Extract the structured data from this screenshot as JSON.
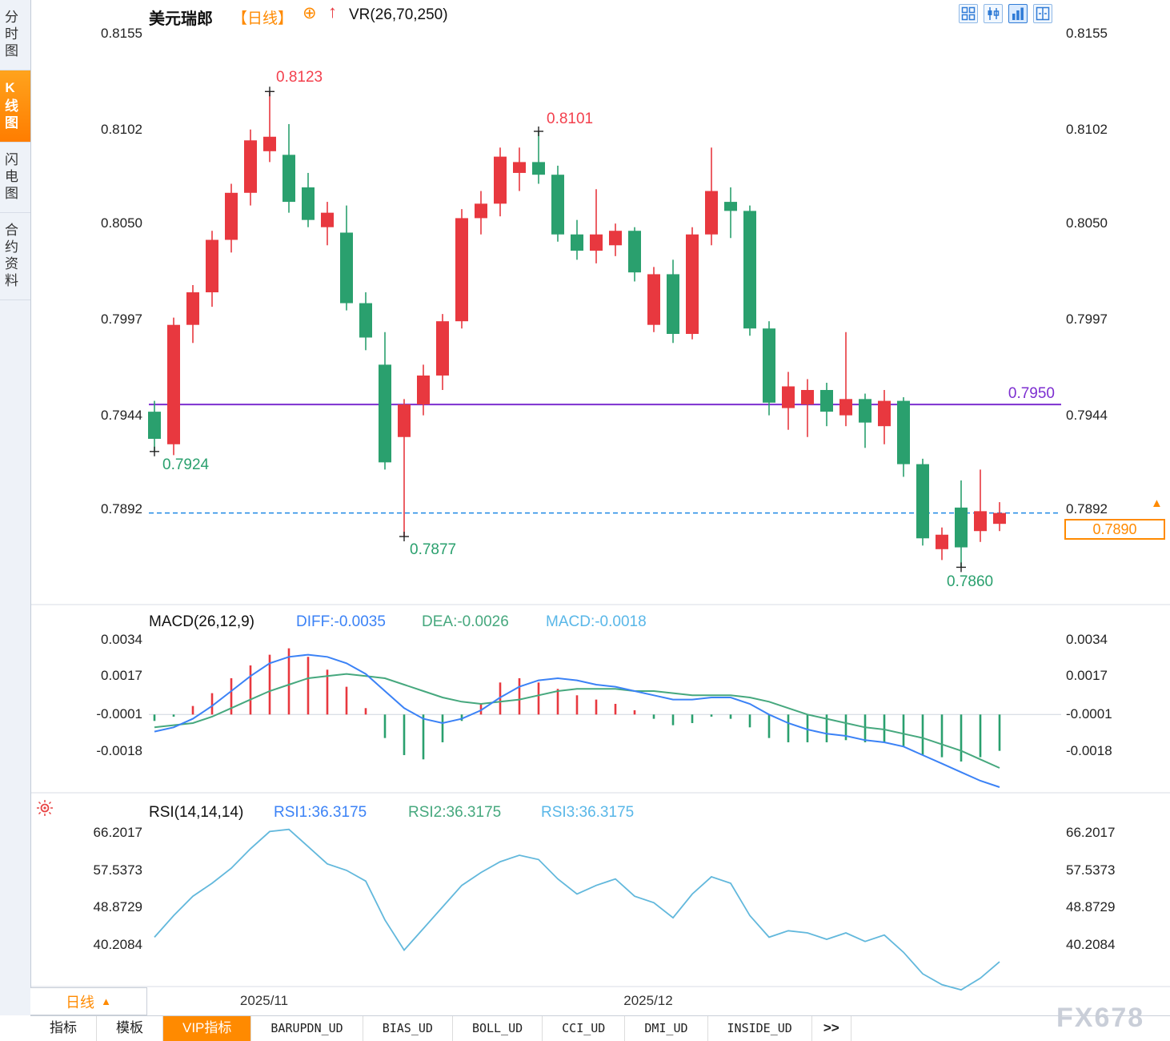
{
  "header": {
    "symbol": "美元瑞郎",
    "period_tag": "【日线】",
    "overlay_icon": "⊕",
    "trend_icon": "↑",
    "indicator_label": "VR(26,70,250)"
  },
  "sidebar": {
    "items": [
      {
        "label": "分时图",
        "active": false
      },
      {
        "label": "K线图",
        "active": true
      },
      {
        "label": "闪电图",
        "active": false
      },
      {
        "label": "合约资料",
        "active": false
      }
    ]
  },
  "toolbar": {
    "icons": [
      "grid-layout",
      "candles-layout",
      "bars-layout",
      "panes-layout"
    ]
  },
  "colors": {
    "up": "#e8383f",
    "down": "#2aa06e",
    "diff": "#3b82f6",
    "dea": "#46a87e",
    "rsi": "#62b8dc",
    "accent_orange": "#ff8a00",
    "purple_line": "#7d2fd0",
    "dashed_blue": "#1e88e5"
  },
  "bottom_left": {
    "period": "日线",
    "arrow": "▲"
  },
  "bottom_tabs": {
    "items": [
      {
        "label": "指标"
      },
      {
        "label": "模板"
      },
      {
        "label": "VIP指标",
        "active": true
      },
      {
        "label": "BARUPDN_UD"
      },
      {
        "label": "BIAS_UD"
      },
      {
        "label": "BOLL_UD"
      },
      {
        "label": "CCI_UD"
      },
      {
        "label": "DMI_UD"
      },
      {
        "label": "INSIDE_UD"
      },
      {
        "label": ">>"
      }
    ]
  },
  "watermark": "FX678",
  "chart_data": [
    {
      "type": "candlestick",
      "symbol": "美元瑞郎",
      "timeframe": "日线",
      "x_labels": [
        "2025/11",
        "2025/12"
      ],
      "ylim": [
        0.784,
        0.816
      ],
      "yticks": [
        "0.8155",
        "0.8102",
        "0.8050",
        "0.7997",
        "0.7944",
        "0.7892"
      ],
      "last_price": "0.7890",
      "hlines": [
        {
          "value": 0.795,
          "label": "0.7950",
          "color": "#7d2fd0",
          "style": "solid"
        },
        {
          "value": 0.789,
          "label": "0.7890",
          "color": "#1e88e5",
          "style": "dashed"
        }
      ],
      "annotations": [
        {
          "index": 6,
          "text": "0.8123",
          "position": "high"
        },
        {
          "index": 20,
          "text": "0.8101",
          "position": "high"
        },
        {
          "index": 0,
          "text": "0.7924",
          "position": "low"
        },
        {
          "index": 13,
          "text": "0.7877",
          "position": "low"
        },
        {
          "index": 42,
          "text": "0.7860",
          "position": "low"
        }
      ],
      "candles": [
        [
          0.7946,
          0.7952,
          0.7924,
          0.7931
        ],
        [
          0.7928,
          0.7998,
          0.7922,
          0.7994
        ],
        [
          0.7994,
          0.8016,
          0.7984,
          0.8012
        ],
        [
          0.8012,
          0.8046,
          0.8004,
          0.8041
        ],
        [
          0.8041,
          0.8072,
          0.8034,
          0.8067
        ],
        [
          0.8067,
          0.8102,
          0.806,
          0.8096
        ],
        [
          0.809,
          0.8123,
          0.8084,
          0.8098
        ],
        [
          0.8088,
          0.8105,
          0.8056,
          0.8062
        ],
        [
          0.807,
          0.8078,
          0.8048,
          0.8052
        ],
        [
          0.8048,
          0.8062,
          0.8038,
          0.8056
        ],
        [
          0.8045,
          0.806,
          0.8002,
          0.8006
        ],
        [
          0.8006,
          0.8012,
          0.798,
          0.7987
        ],
        [
          0.7972,
          0.799,
          0.7914,
          0.7918
        ],
        [
          0.7932,
          0.7953,
          0.7877,
          0.795
        ],
        [
          0.795,
          0.7972,
          0.7944,
          0.7966
        ],
        [
          0.7966,
          0.8,
          0.7958,
          0.7996
        ],
        [
          0.7996,
          0.8058,
          0.7992,
          0.8053
        ],
        [
          0.8053,
          0.8068,
          0.8044,
          0.8061
        ],
        [
          0.8061,
          0.8092,
          0.8054,
          0.8087
        ],
        [
          0.8078,
          0.8092,
          0.8068,
          0.8084
        ],
        [
          0.8084,
          0.8101,
          0.8072,
          0.8077
        ],
        [
          0.8077,
          0.8082,
          0.804,
          0.8044
        ],
        [
          0.8044,
          0.8052,
          0.803,
          0.8035
        ],
        [
          0.8035,
          0.8069,
          0.8028,
          0.8044
        ],
        [
          0.8038,
          0.805,
          0.8032,
          0.8046
        ],
        [
          0.8046,
          0.8048,
          0.8018,
          0.8023
        ],
        [
          0.7994,
          0.8026,
          0.799,
          0.8022
        ],
        [
          0.8022,
          0.803,
          0.7984,
          0.7989
        ],
        [
          0.7989,
          0.8048,
          0.7986,
          0.8044
        ],
        [
          0.8044,
          0.8092,
          0.8038,
          0.8068
        ],
        [
          0.8062,
          0.807,
          0.8042,
          0.8057
        ],
        [
          0.8057,
          0.806,
          0.7988,
          0.7992
        ],
        [
          0.7992,
          0.7996,
          0.7944,
          0.7951
        ],
        [
          0.7948,
          0.7968,
          0.7936,
          0.796
        ],
        [
          0.795,
          0.7964,
          0.7932,
          0.7958
        ],
        [
          0.7958,
          0.7962,
          0.7938,
          0.7946
        ],
        [
          0.7944,
          0.799,
          0.7938,
          0.7953
        ],
        [
          0.7953,
          0.7956,
          0.7926,
          0.794
        ],
        [
          0.7938,
          0.7958,
          0.7928,
          0.7952
        ],
        [
          0.7952,
          0.7954,
          0.791,
          0.7917
        ],
        [
          0.7917,
          0.792,
          0.7872,
          0.7876
        ],
        [
          0.787,
          0.7882,
          0.7864,
          0.7878
        ],
        [
          0.7893,
          0.7908,
          0.786,
          0.7871
        ],
        [
          0.788,
          0.7914,
          0.7874,
          0.7891
        ],
        [
          0.7884,
          0.7896,
          0.788,
          0.789
        ]
      ]
    },
    {
      "type": "bar",
      "name": "MACD",
      "title": "MACD(26,12,9)",
      "labels": {
        "diff": "DIFF:-0.0035",
        "dea": "DEA:-0.0026",
        "macd": "MACD:-0.0018"
      },
      "yticks": [
        "0.0034",
        "0.0017",
        "-0.0001",
        "-0.0018"
      ],
      "histogram": [
        -0.0004,
        -0.0002,
        0.0003,
        0.0009,
        0.0016,
        0.0022,
        0.0027,
        0.003,
        0.0026,
        0.002,
        0.0012,
        0.0002,
        -0.0012,
        -0.002,
        -0.0022,
        -0.0014,
        -0.0004,
        0.0004,
        0.0014,
        0.0016,
        0.0014,
        0.0011,
        0.0008,
        0.0006,
        0.0004,
        0.0001,
        -0.0003,
        -0.0006,
        -0.0005,
        -0.0002,
        -0.0003,
        -0.0007,
        -0.0012,
        -0.0014,
        -0.0014,
        -0.0014,
        -0.0013,
        -0.0014,
        -0.0014,
        -0.0016,
        -0.002,
        -0.0021,
        -0.0023,
        -0.0021,
        -0.0018
      ],
      "diff": [
        -0.0009,
        -0.0007,
        -0.0003,
        0.0003,
        0.001,
        0.0017,
        0.0023,
        0.0026,
        0.0027,
        0.0026,
        0.0023,
        0.0018,
        0.001,
        0.0002,
        -0.0003,
        -0.0005,
        -0.0003,
        0.0001,
        0.0007,
        0.0012,
        0.0015,
        0.0016,
        0.0015,
        0.0013,
        0.0012,
        0.001,
        0.0008,
        0.0006,
        0.0006,
        0.0007,
        0.0007,
        0.0004,
        -0.0001,
        -0.0005,
        -0.0008,
        -0.001,
        -0.0011,
        -0.0013,
        -0.0014,
        -0.0016,
        -0.002,
        -0.0024,
        -0.0028,
        -0.0032,
        -0.0035
      ],
      "dea": [
        -0.0007,
        -0.0006,
        -0.0005,
        -0.0002,
        0.0002,
        0.0006,
        0.001,
        0.0013,
        0.0016,
        0.0017,
        0.0018,
        0.0017,
        0.0016,
        0.0013,
        0.001,
        0.0007,
        0.0005,
        0.0004,
        0.0005,
        0.0006,
        0.0008,
        0.001,
        0.0011,
        0.0011,
        0.0011,
        0.001,
        0.001,
        0.0009,
        0.0008,
        0.0008,
        0.0008,
        0.0007,
        0.0005,
        0.0002,
        -0.0001,
        -0.0003,
        -0.0005,
        -0.0007,
        -0.0008,
        -0.001,
        -0.0012,
        -0.0015,
        -0.0018,
        -0.0022,
        -0.0026
      ]
    },
    {
      "type": "line",
      "name": "RSI",
      "title": "RSI(14,14,14)",
      "labels": {
        "rsi1": "RSI1:36.3175",
        "rsi2": "RSI2:36.3175",
        "rsi3": "RSI3:36.3175"
      },
      "yticks": [
        "66.2017",
        "57.5373",
        "48.8729",
        "40.2084"
      ],
      "values": [
        42.0,
        47.0,
        51.5,
        54.5,
        58.0,
        62.5,
        66.5,
        67.0,
        63.0,
        59.0,
        57.5,
        55.0,
        46.0,
        39.0,
        44.0,
        49.0,
        54.0,
        57.0,
        59.5,
        61.0,
        60.0,
        55.5,
        52.0,
        54.0,
        55.5,
        51.5,
        50.0,
        46.5,
        52.0,
        56.0,
        54.5,
        47.0,
        42.0,
        43.5,
        43.0,
        41.5,
        43.0,
        41.0,
        42.5,
        38.5,
        33.5,
        31.0,
        29.8,
        32.5,
        36.3
      ]
    }
  ]
}
